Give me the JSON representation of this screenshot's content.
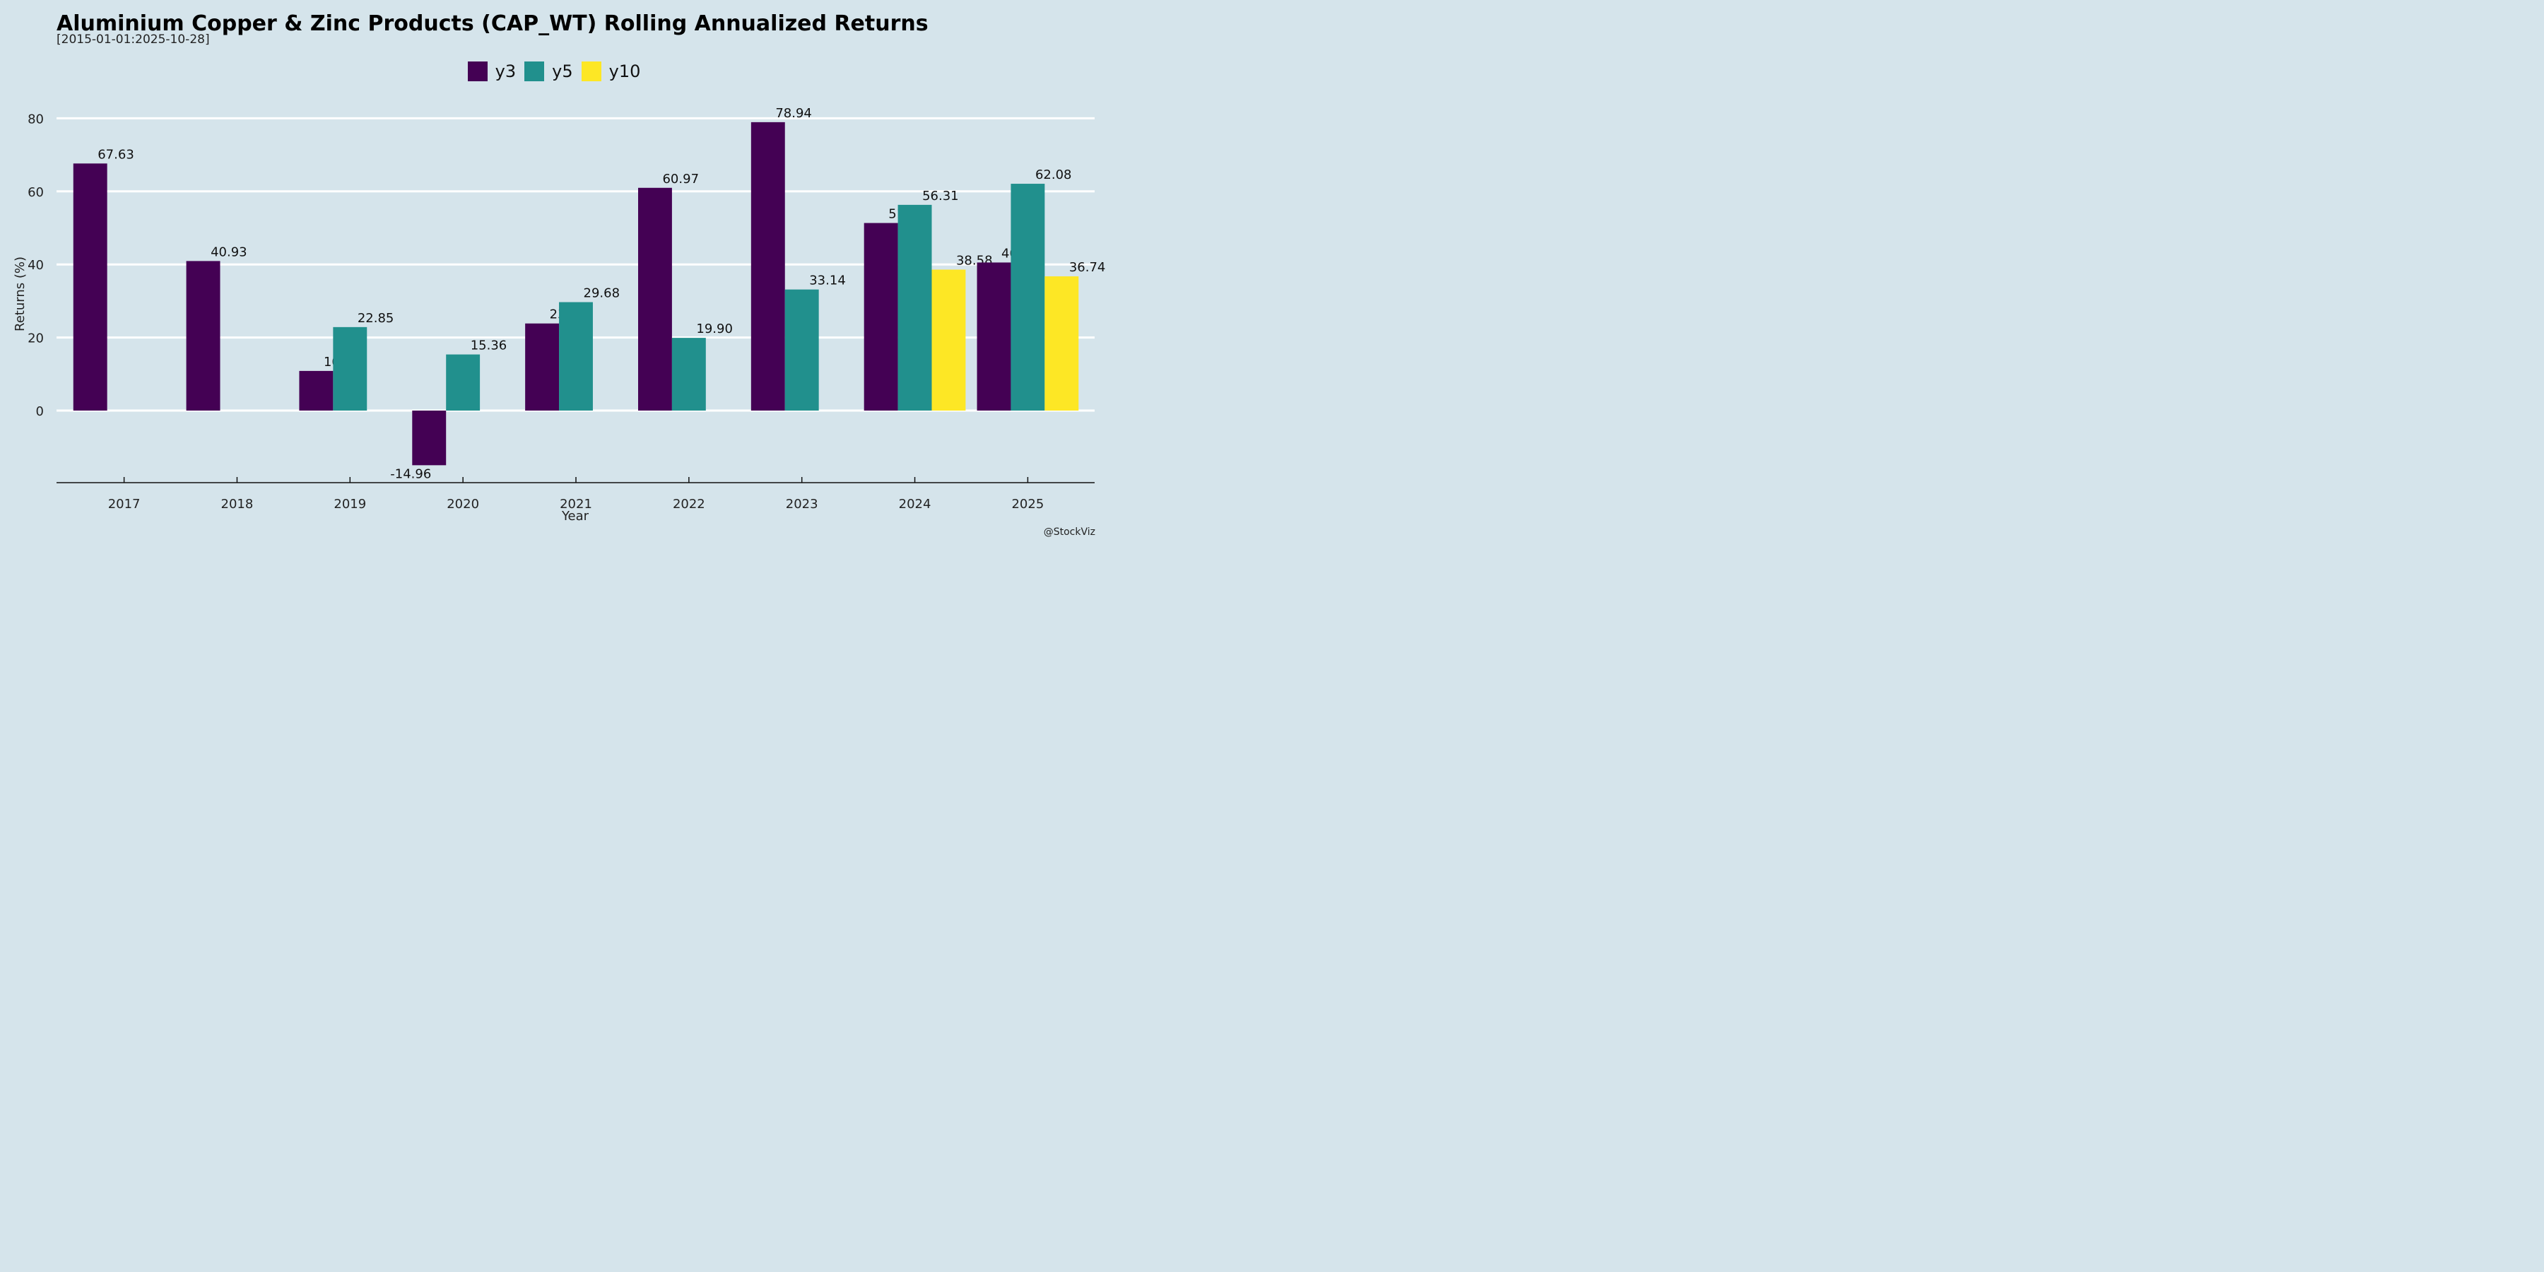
{
  "chart_data": {
    "type": "bar",
    "title": "Aluminium Copper & Zinc Products (CAP_WT) Rolling Annualized Returns",
    "subtitle": "[2015-01-01:2025-10-28]",
    "xlabel": "Year",
    "ylabel": "Returns (%)",
    "categories": [
      "2017",
      "2018",
      "2019",
      "2020",
      "2021",
      "2022",
      "2023",
      "2024",
      "2025"
    ],
    "series": [
      {
        "name": "y3",
        "color": "#440154",
        "values": [
          67.63,
          40.93,
          10.85,
          -14.96,
          23.84,
          60.97,
          78.94,
          51.34,
          40.53
        ]
      },
      {
        "name": "y5",
        "color": "#21908d",
        "values": [
          null,
          null,
          22.85,
          15.36,
          29.68,
          19.9,
          33.14,
          56.31,
          62.08
        ]
      },
      {
        "name": "y10",
        "color": "#fde725",
        "values": [
          null,
          null,
          null,
          null,
          null,
          null,
          null,
          38.58,
          36.74
        ]
      }
    ],
    "data_labels": [
      "67.63",
      "40.93",
      "10.85",
      "-14.96",
      "23.84",
      "60.97",
      "78.94",
      "51.34",
      "40.53",
      "22.85",
      "15.36",
      "29.68",
      "19.90",
      "33.14",
      "56.31",
      "62.08",
      "38.58",
      "36.74"
    ],
    "yticks": [
      0,
      20,
      40,
      60,
      80
    ],
    "ylim": [
      -20,
      80
    ],
    "grid": "horizontal",
    "legend_position": "top-center",
    "credit": "@StockViz"
  }
}
